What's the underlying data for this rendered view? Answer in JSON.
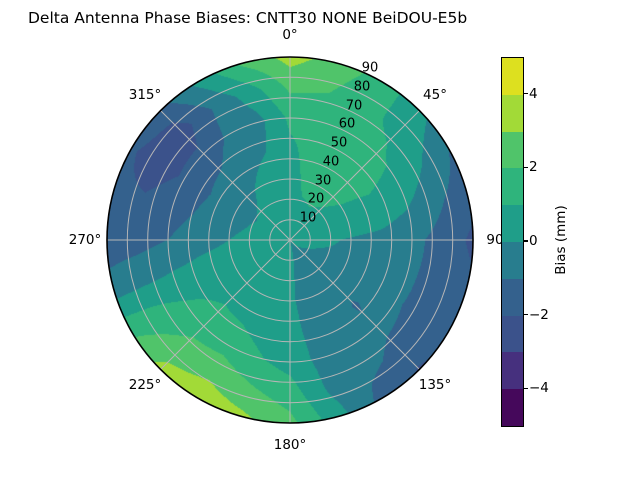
{
  "title": {
    "left": "Delta Antenna Phase Biases: CNTT30",
    "right": "NONE BeiDOU-E5b"
  },
  "chart_data": {
    "type": "heatmap",
    "projection": "polar",
    "title": "Delta Antenna Phase Biases: CNTT30        NONE BeiDOU-E5b",
    "angular_axis": {
      "direction": "clockwise",
      "zero_location": "top",
      "tick_labels": [
        {
          "angle_deg": 0,
          "label": "0°"
        },
        {
          "angle_deg": 45,
          "label": "45°"
        },
        {
          "angle_deg": 90,
          "label": "90"
        },
        {
          "angle_deg": 135,
          "label": "135°"
        },
        {
          "angle_deg": 180,
          "label": "180°"
        },
        {
          "angle_deg": 225,
          "label": "225°"
        },
        {
          "angle_deg": 270,
          "label": "270°"
        },
        {
          "angle_deg": 315,
          "label": "315°"
        }
      ]
    },
    "radial_axis": {
      "range": [
        0,
        90
      ],
      "label_angle_deg": 22.5,
      "tick_labels": [
        {
          "radius": 10,
          "label": "10"
        },
        {
          "radius": 20,
          "label": "20"
        },
        {
          "radius": 30,
          "label": "30"
        },
        {
          "radius": 40,
          "label": "40"
        },
        {
          "radius": 50,
          "label": "50"
        },
        {
          "radius": 60,
          "label": "60"
        },
        {
          "radius": 70,
          "label": "70"
        },
        {
          "radius": 80,
          "label": "80"
        },
        {
          "radius": 90,
          "label": "90"
        }
      ]
    },
    "grid": {
      "ring_radii": [
        10,
        20,
        30,
        40,
        50,
        60,
        70,
        80
      ],
      "spoke_angles_deg": [
        0,
        45,
        90,
        135,
        180,
        225,
        270,
        315
      ],
      "color": "#b6b6b6",
      "outline_color": "#000000"
    },
    "colorbar": {
      "label": "Bias (mm)",
      "range": [
        -5,
        5
      ],
      "level_step_mm": 1,
      "tick_values": [
        4,
        2,
        0,
        -2,
        -4
      ],
      "tick_labels": [
        "4",
        "2",
        "0",
        "−2",
        "−4"
      ],
      "colors_bottom_to_top": [
        "#45085b",
        "#46307e",
        "#3b528b",
        "#34618d",
        "#287d8e",
        "#1f9e89",
        "#2fb47c",
        "#50c46a",
        "#a2da37",
        "#dde01f"
      ]
    },
    "field": {
      "units": "mm",
      "azimuth_deg": [
        0,
        15,
        30,
        45,
        60,
        75,
        90,
        105,
        120,
        135,
        150,
        165,
        180,
        195,
        210,
        225,
        240,
        255,
        270,
        285,
        300,
        315,
        330,
        345
      ],
      "radius_deg": [
        0,
        15,
        30,
        45,
        60,
        75,
        90
      ],
      "bias_mm": [
        [
          0.5,
          0.5,
          0.6,
          0.8,
          1.2,
          2.2,
          3.4
        ],
        [
          0.5,
          0.8,
          1.2,
          1.4,
          1.4,
          2.0,
          2.6
        ],
        [
          0.5,
          0.9,
          1.3,
          1.5,
          1.3,
          1.2,
          1.6
        ],
        [
          0.5,
          0.8,
          1.2,
          1.4,
          1.2,
          0.8,
          0.3
        ],
        [
          0.4,
          0.6,
          0.9,
          1.0,
          0.8,
          0.0,
          -1.0
        ],
        [
          0.3,
          0.4,
          0.5,
          0.4,
          0.0,
          -0.8,
          -1.6
        ],
        [
          0.3,
          0.2,
          -0.1,
          -0.3,
          -0.7,
          -1.4,
          -2.2
        ],
        [
          0.2,
          0.0,
          -0.2,
          -0.4,
          -0.8,
          -1.4,
          -1.8
        ],
        [
          0.1,
          -0.1,
          -0.3,
          -0.5,
          -0.9,
          -1.3,
          -1.8
        ],
        [
          0.1,
          -0.2,
          -0.5,
          -1.1,
          -0.8,
          -1.2,
          -2.1
        ],
        [
          0.0,
          -0.2,
          -0.3,
          -0.4,
          -0.6,
          -0.8,
          -1.3
        ],
        [
          0.0,
          -0.1,
          -0.2,
          -0.3,
          -0.3,
          -0.2,
          0.4
        ],
        [
          0.2,
          0.1,
          0.1,
          0.3,
          0.6,
          1.5,
          2.3
        ],
        [
          0.4,
          0.3,
          0.4,
          0.6,
          1.1,
          2.1,
          3.2
        ],
        [
          0.4,
          0.5,
          0.6,
          0.9,
          1.6,
          2.7,
          3.7
        ],
        [
          0.5,
          0.5,
          0.7,
          1.0,
          1.6,
          2.4,
          3.3
        ],
        [
          0.5,
          0.5,
          0.6,
          0.8,
          1.0,
          1.5,
          1.8
        ],
        [
          0.5,
          0.4,
          0.3,
          0.2,
          0.0,
          -0.3,
          -0.6
        ],
        [
          0.5,
          0.3,
          0.0,
          -0.4,
          -1.0,
          -1.4,
          -1.6
        ],
        [
          0.4,
          0.2,
          -0.2,
          -0.8,
          -1.5,
          -1.9,
          -1.8
        ],
        [
          0.4,
          0.1,
          -0.3,
          -1.0,
          -1.9,
          -2.4,
          -1.9
        ],
        [
          0.4,
          0.2,
          -0.2,
          -0.8,
          -1.8,
          -2.5,
          -1.4
        ],
        [
          0.4,
          0.3,
          0.1,
          -0.3,
          -0.8,
          -0.9,
          0.3
        ],
        [
          0.5,
          0.4,
          0.4,
          0.0,
          -0.3,
          0.5,
          2.2
        ]
      ]
    }
  }
}
